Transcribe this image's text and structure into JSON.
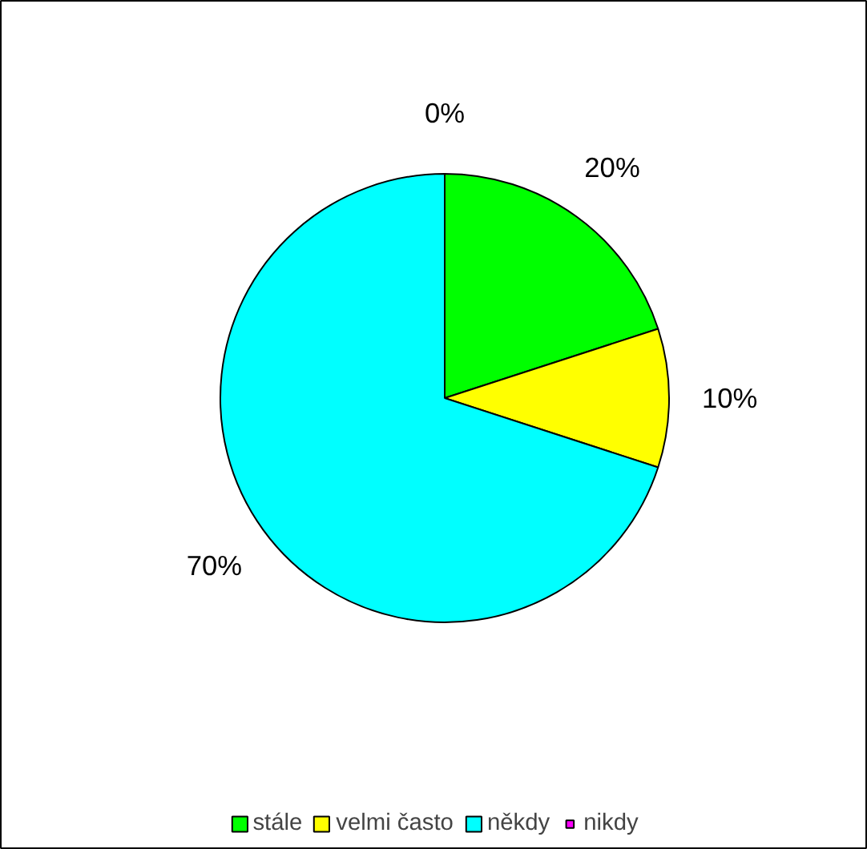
{
  "chart_data": {
    "type": "pie",
    "categories": [
      "stále",
      "velmi často",
      "někdy",
      "nikdy"
    ],
    "values": [
      20,
      10,
      70,
      0
    ],
    "colors": [
      "#00ff00",
      "#ffff00",
      "#00ffff",
      "#ff00ff"
    ],
    "value_labels": [
      "20%",
      "10%",
      "70%",
      "0%"
    ],
    "legend": "bottom"
  }
}
